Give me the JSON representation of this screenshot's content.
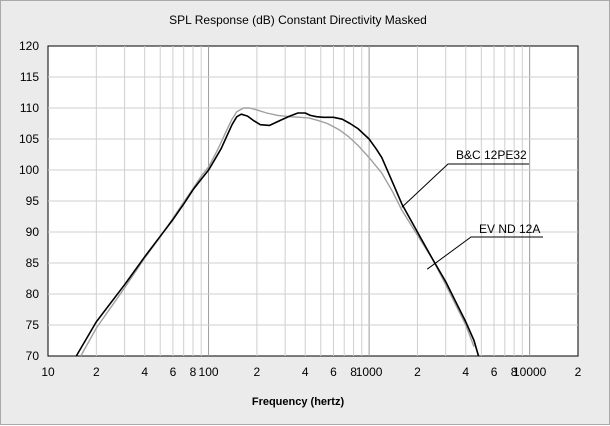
{
  "chart_data": {
    "type": "line",
    "title": "SPL Response (dB)   Constant Directivity   Masked",
    "xlabel": "Frequency (hertz)",
    "ylabel": "",
    "x_scale": "log",
    "xlim": [
      10,
      20000
    ],
    "ylim": [
      70,
      120
    ],
    "grid": true,
    "x_tick_labels": [
      {
        "x": 10,
        "label": "10"
      },
      {
        "x": 20,
        "label": "2"
      },
      {
        "x": 40,
        "label": "4"
      },
      {
        "x": 60,
        "label": "6"
      },
      {
        "x": 80,
        "label": "8"
      },
      {
        "x": 100,
        "label": "100"
      },
      {
        "x": 200,
        "label": "2"
      },
      {
        "x": 400,
        "label": "4"
      },
      {
        "x": 600,
        "label": "6"
      },
      {
        "x": 800,
        "label": "8"
      },
      {
        "x": 1000,
        "label": "1000"
      },
      {
        "x": 2000,
        "label": "2"
      },
      {
        "x": 4000,
        "label": "4"
      },
      {
        "x": 6000,
        "label": "6"
      },
      {
        "x": 8000,
        "label": "8"
      },
      {
        "x": 10000,
        "label": "10000"
      },
      {
        "x": 20000,
        "label": "2"
      }
    ],
    "y_tick_labels": [
      "70",
      "75",
      "80",
      "85",
      "90",
      "95",
      "100",
      "105",
      "110",
      "115",
      "120"
    ],
    "series": [
      {
        "name": "B&C 12PE32",
        "color": "#000000",
        "x": [
          15,
          20,
          30,
          40,
          50,
          60,
          70,
          80,
          90,
          100,
          110,
          120,
          130,
          140,
          150,
          160,
          175,
          190,
          210,
          240,
          280,
          320,
          360,
          400,
          430,
          470,
          520,
          600,
          680,
          760,
          850,
          1000,
          1100,
          1200,
          1400,
          1600,
          2000,
          2500,
          3000,
          3500,
          4000,
          4500,
          4800
        ],
        "y": [
          70,
          75.5,
          81.5,
          86,
          89.3,
          92,
          94.5,
          96.8,
          98.5,
          100,
          101.8,
          103.5,
          105.5,
          107.3,
          108.6,
          109,
          108.7,
          108,
          107.3,
          107.2,
          108,
          108.7,
          109.2,
          109.2,
          108.8,
          108.6,
          108.5,
          108.5,
          108.2,
          107.5,
          106.7,
          105,
          103.5,
          102,
          98,
          94.5,
          90,
          85.5,
          82,
          78.5,
          75.5,
          72.5,
          70
        ]
      },
      {
        "name": "EV ND 12A",
        "color": "#a0a0a0",
        "x": [
          16,
          20,
          30,
          40,
          50,
          60,
          70,
          80,
          90,
          100,
          110,
          120,
          130,
          140,
          150,
          165,
          180,
          200,
          230,
          270,
          320,
          370,
          420,
          480,
          550,
          650,
          750,
          850,
          1000,
          1200,
          1400,
          1600,
          2000,
          2500,
          3000,
          3500,
          4000,
          4500
        ],
        "y": [
          70,
          74.5,
          81,
          85.8,
          89.2,
          92.2,
          94.8,
          97,
          99,
          100.5,
          102.5,
          104.5,
          106.5,
          108.2,
          109.4,
          110,
          110,
          109.7,
          109.2,
          108.8,
          108.6,
          108.5,
          108.4,
          108,
          107.5,
          106.5,
          105.3,
          104,
          102,
          99.5,
          96.5,
          93.5,
          89.5,
          85.5,
          81.5,
          78,
          75,
          71.5
        ]
      }
    ],
    "annotations": [
      {
        "text": "B&C 12PE32",
        "series": 0
      },
      {
        "text": "EV ND 12A",
        "series": 1
      }
    ]
  }
}
